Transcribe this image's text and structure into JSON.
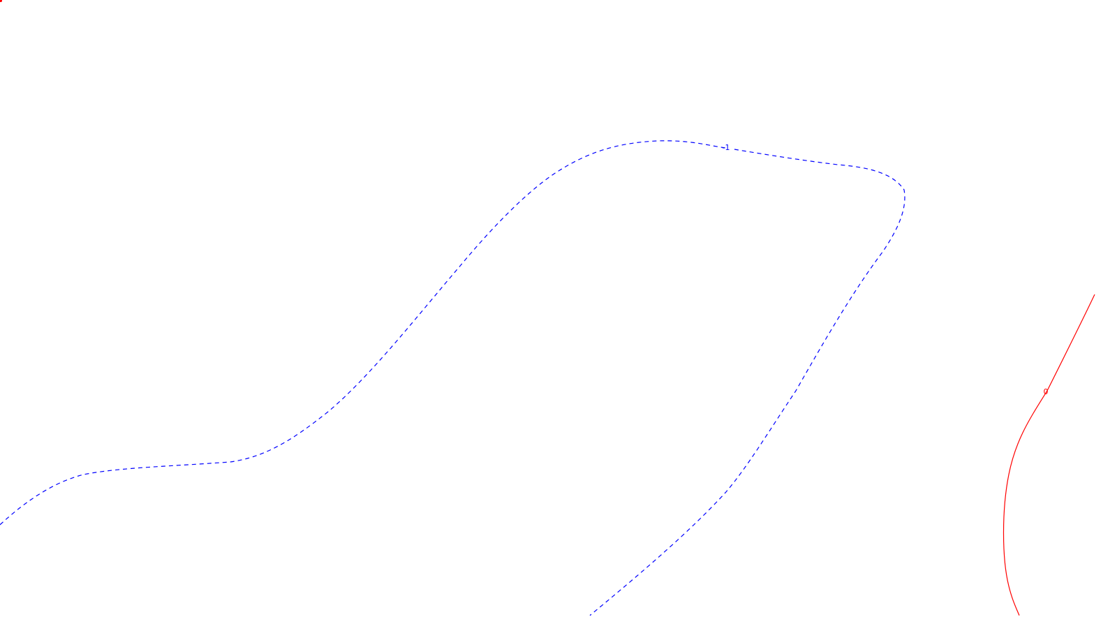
{
  "chart_data": {
    "type": "contour",
    "title": "",
    "xlabel": "",
    "ylabel": "",
    "grid": false,
    "legend": "none",
    "levels": [
      {
        "value": -1,
        "label": "-1",
        "color": "#0000ff",
        "linestyle": "dashed"
      },
      {
        "value": 0,
        "label": "0",
        "color": "#ff0000",
        "linestyle": "solid"
      }
    ]
  }
}
